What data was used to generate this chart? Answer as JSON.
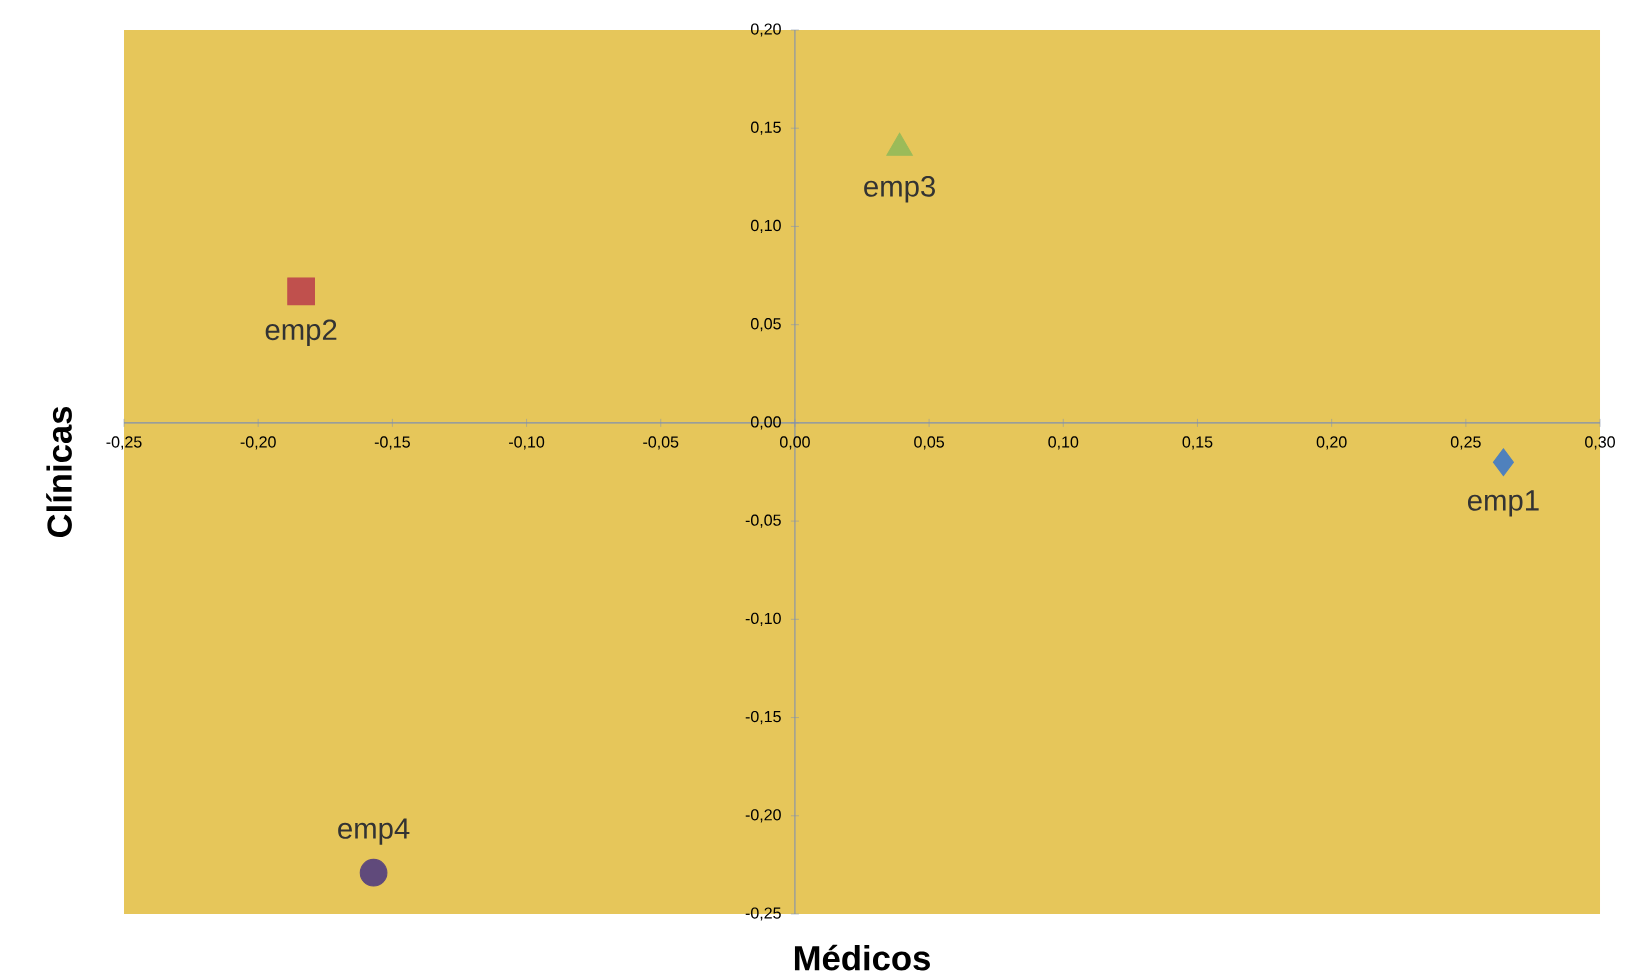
{
  "chart_data": {
    "type": "scatter",
    "xlabel": "Médicos",
    "ylabel": "Clínicas",
    "xlim": [
      -0.25,
      0.3
    ],
    "ylim": [
      -0.25,
      0.2
    ],
    "xticks": [
      {
        "value": -0.25,
        "label": "-0,25"
      },
      {
        "value": -0.2,
        "label": "-0,20"
      },
      {
        "value": -0.15,
        "label": "-0,15"
      },
      {
        "value": -0.1,
        "label": "-0,10"
      },
      {
        "value": -0.05,
        "label": "-0,05"
      },
      {
        "value": 0,
        "label": "0,00"
      },
      {
        "value": 0.05,
        "label": "0,05"
      },
      {
        "value": 0.1,
        "label": "0,10"
      },
      {
        "value": 0.15,
        "label": "0,15"
      },
      {
        "value": 0.2,
        "label": "0,20"
      },
      {
        "value": 0.25,
        "label": "0,25"
      },
      {
        "value": 0.3,
        "label": "0,30"
      }
    ],
    "yticks": [
      {
        "value": -0.25,
        "label": "-0,25"
      },
      {
        "value": -0.2,
        "label": "-0,20"
      },
      {
        "value": -0.15,
        "label": "-0,15"
      },
      {
        "value": -0.1,
        "label": "-0,10"
      },
      {
        "value": -0.05,
        "label": "-0,05"
      },
      {
        "value": 0,
        "label": "0,00"
      },
      {
        "value": 0.05,
        "label": "0,05"
      },
      {
        "value": 0.1,
        "label": "0,10"
      },
      {
        "value": 0.15,
        "label": "0,15"
      },
      {
        "value": 0.2,
        "label": "0,20"
      }
    ],
    "grid": false,
    "series": [
      {
        "name": "emp1",
        "color": "#4f81bd",
        "marker": "diamond",
        "x": [
          0.264
        ],
        "values": [
          -0.02
        ]
      },
      {
        "name": "emp2",
        "color": "#c0504d",
        "marker": "square",
        "x": [
          -0.184
        ],
        "values": [
          0.067
        ]
      },
      {
        "name": "emp3",
        "color": "#9bbb59",
        "marker": "triangle",
        "x": [
          0.039
        ],
        "values": [
          0.14
        ]
      },
      {
        "name": "emp4",
        "color": "#604a7b",
        "marker": "circle",
        "x": [
          -0.157
        ],
        "values": [
          -0.229
        ]
      }
    ]
  }
}
